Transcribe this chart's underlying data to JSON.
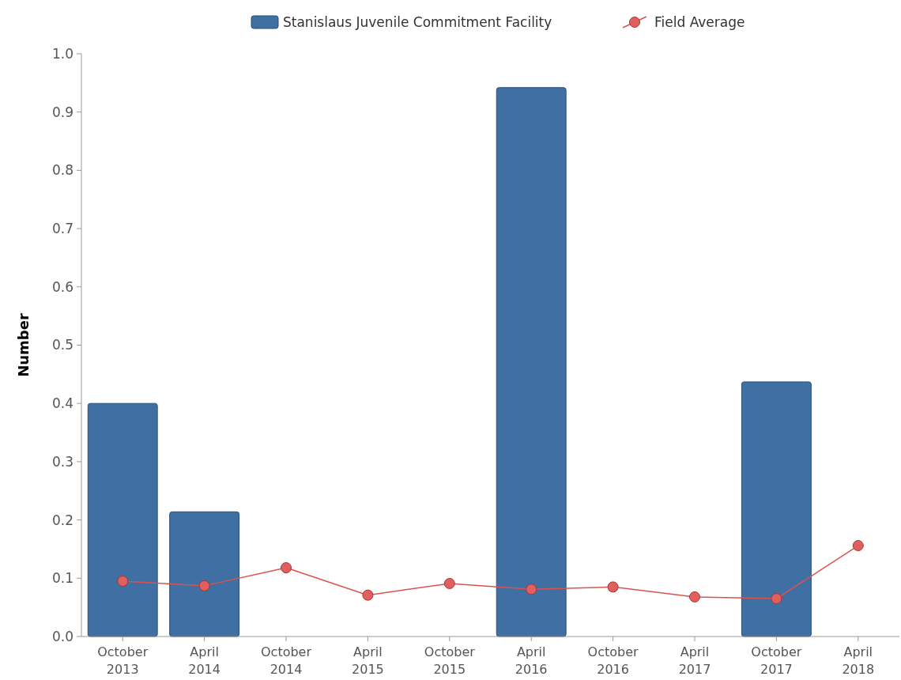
{
  "chart_data": {
    "type": "bar",
    "ylabel": "Number",
    "categories": [
      "October\n2013",
      "April\n2014",
      "October\n2014",
      "April\n2015",
      "October\n2015",
      "April\n2016",
      "October\n2016",
      "April\n2017",
      "October\n2017",
      "April\n2018"
    ],
    "series": [
      {
        "name": "Stanislaus Juvenile Commitment Facility",
        "color": "#3f6fa3",
        "values": [
          0.4,
          0.214,
          null,
          null,
          null,
          0.942,
          null,
          null,
          0.437,
          null
        ]
      },
      {
        "name": "Field Average",
        "type": "line",
        "color": "#d9534f",
        "values": [
          0.095,
          0.087,
          0.118,
          0.071,
          0.091,
          0.081,
          0.085,
          0.068,
          0.065,
          0.156
        ]
      }
    ],
    "ylim": [
      0,
      1
    ],
    "yticks": [
      {
        "value": 0,
        "label": "0.0"
      },
      0.1,
      0.2,
      0.3,
      0.4,
      0.5,
      0.6,
      0.7,
      0.8,
      0.9,
      {
        "value": 1,
        "label": "1.0"
      }
    ],
    "grid": false,
    "legend": "top",
    "marker": "circle",
    "line_style": "solid"
  }
}
